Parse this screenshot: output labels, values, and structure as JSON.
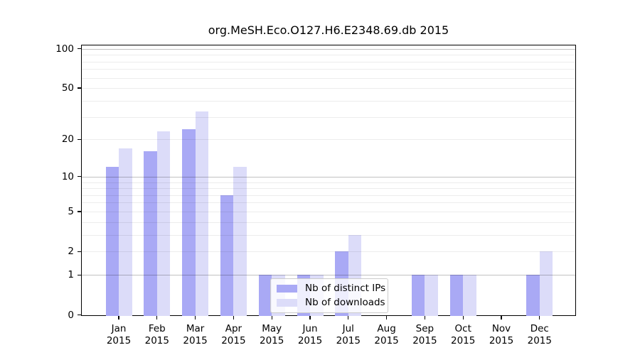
{
  "chart_data": {
    "type": "bar",
    "title": "org.MeSH.Eco.O127.H6.E2348.69.db 2015",
    "categories": [
      "Jan 2015",
      "Feb 2015",
      "Mar 2015",
      "Apr 2015",
      "May 2015",
      "Jun 2015",
      "Jul 2015",
      "Aug 2015",
      "Sep 2015",
      "Oct 2015",
      "Nov 2015",
      "Dec 2015"
    ],
    "series": [
      {
        "name": "Nb of distinct IPs",
        "color": "#a9a9f5",
        "values": [
          12,
          16,
          24,
          7,
          1,
          1,
          2,
          0,
          1,
          1,
          0,
          1
        ]
      },
      {
        "name": "Nb of downloads",
        "color": "#dcdcf9",
        "values": [
          17,
          23,
          33,
          12,
          1,
          1,
          3,
          0,
          1,
          1,
          0,
          2
        ]
      }
    ],
    "yscale": "log1p",
    "yticks": [
      0,
      1,
      2,
      5,
      10,
      20,
      50,
      100
    ],
    "ytick_major_gridlines": [
      1,
      10,
      100
    ],
    "ylim": [
      0,
      107
    ],
    "xlabel": "",
    "ylabel": "",
    "grid": true,
    "legend_position": "lower-center"
  }
}
